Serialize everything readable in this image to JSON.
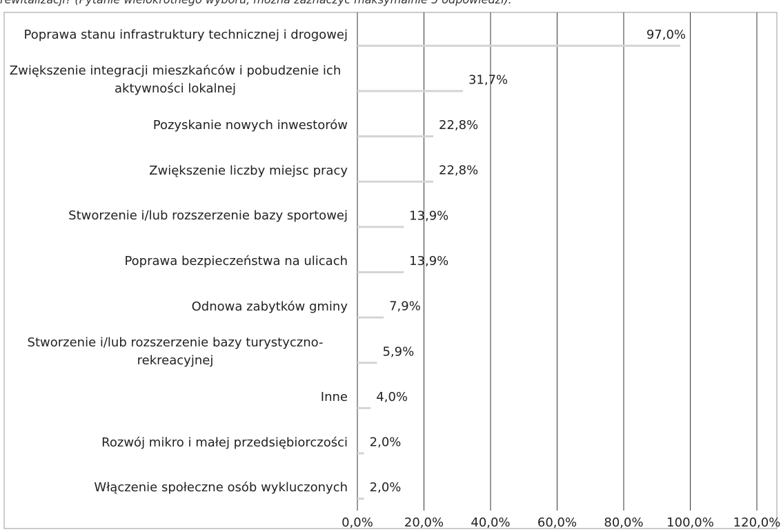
{
  "chart_data": {
    "type": "bar",
    "orientation": "horizontal",
    "subtitle": "rewitalizacji? (Pytanie wielokrotnego wyboru, można zaznaczyć maksymalnie 5 odpowiedzi):",
    "categories": [
      "Poprawa stanu infrastruktury technicznej i drogowej",
      "Zwiększenie integracji mieszkańców i pobudzenie ich aktywności lokalnej",
      "Pozyskanie nowych inwestorów",
      "Zwiększenie liczby miejsc pracy",
      "Stworzenie i/lub rozszerzenie bazy sportowej",
      "Poprawa bezpieczeństwa na ulicach",
      "Odnowa zabytków gminy",
      "Stworzenie i/lub rozszerzenie bazy turystyczno-rekreacyjnej",
      "Inne",
      "Rozwój mikro i małej przedsiębiorczości",
      "Włączenie społeczne osób wykluczonych"
    ],
    "values": [
      97.0,
      31.7,
      22.8,
      22.8,
      13.9,
      13.9,
      7.9,
      5.9,
      4.0,
      2.0,
      2.0
    ],
    "value_labels": [
      "97,0%",
      "31,7%",
      "22,8%",
      "22,8%",
      "13,9%",
      "13,9%",
      "7,9%",
      "5,9%",
      "4,0%",
      "2,0%",
      "2,0%"
    ],
    "color": "#d4d4d4",
    "xlim": [
      0,
      120
    ],
    "xticks": [
      {
        "value": 0,
        "label": "0,0%"
      },
      {
        "value": 20,
        "label": "20,0%"
      },
      {
        "value": 40,
        "label": "40,0%"
      },
      {
        "value": 60,
        "label": "60,0%"
      },
      {
        "value": 80,
        "label": "80,0%"
      },
      {
        "value": 100,
        "label": "100,0%"
      },
      {
        "value": 120,
        "label": "120,0%"
      }
    ],
    "grid": true
  }
}
